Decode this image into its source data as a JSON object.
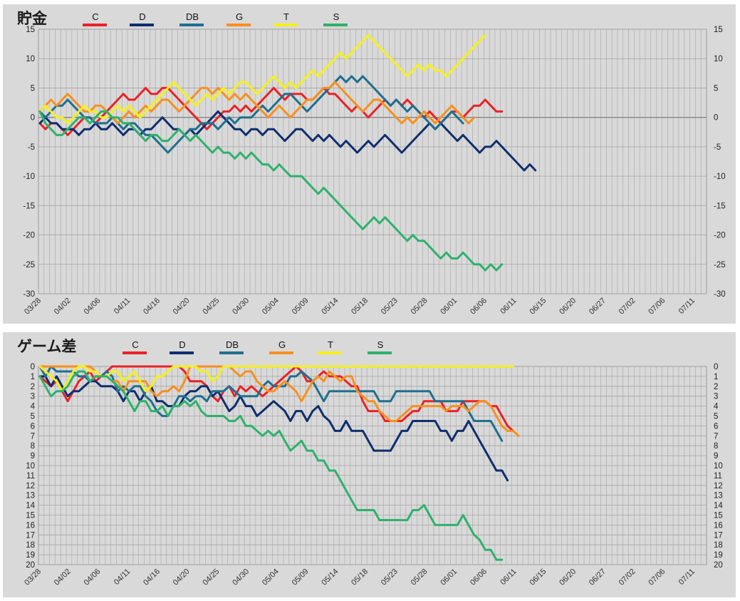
{
  "colors": {
    "C": "#ea2226",
    "D": "#0f2e6e",
    "DB": "#1f6f8e",
    "G": "#f7901e",
    "T": "#f5f01a",
    "S": "#2eb16c"
  },
  "chart_data": [
    {
      "type": "line",
      "title": "貯金",
      "ylim": [
        -30,
        15
      ],
      "yticks": [
        "15",
        "10",
        "5",
        "0",
        "-5",
        "-10",
        "-15",
        "-20",
        "-25",
        "-30"
      ],
      "yticks_right": [
        "15",
        "10",
        "5",
        "0",
        "-5",
        "-10",
        "-15",
        "-20",
        "-25",
        "-30"
      ],
      "xticks": [
        "03/28",
        "04/02",
        "04/06",
        "04/11",
        "04/16",
        "04/20",
        "04/25",
        "04/30",
        "05/04",
        "05/09",
        "05/14",
        "05/18",
        "05/23",
        "05/28",
        "06/01",
        "06/06",
        "06/11",
        "06/15",
        "06/20",
        "06/27",
        "07/02",
        "07/06",
        "07/11"
      ],
      "grid": true,
      "legend_position": "top-left",
      "series": [
        {
          "name": "C",
          "values": [
            -1,
            -2,
            -1,
            -1,
            -2,
            -3,
            -2,
            -1,
            0,
            0,
            -1,
            0,
            1,
            2,
            3,
            4,
            3,
            3,
            4,
            5,
            4,
            4,
            5,
            5,
            4,
            3,
            2,
            1,
            0,
            -1,
            -2,
            -1,
            0,
            1,
            1,
            2,
            1,
            2,
            1,
            2,
            3,
            4,
            5,
            4,
            3,
            4,
            4,
            4,
            3,
            3,
            4,
            5,
            4,
            4,
            3,
            2,
            1,
            2,
            1,
            0,
            1,
            2,
            3,
            2,
            3,
            2,
            3,
            2,
            1,
            0,
            1,
            0,
            -1,
            0,
            1,
            1,
            0,
            1,
            2,
            2,
            3,
            2,
            1,
            1
          ]
        },
        {
          "name": "D",
          "values": [
            -1,
            0,
            -1,
            -1,
            -2,
            -2,
            -2,
            -3,
            -2,
            -2,
            -1,
            -2,
            -2,
            -1,
            -2,
            -3,
            -2,
            -2,
            -3,
            -2,
            -2,
            -1,
            0,
            -1,
            -2,
            -2,
            -3,
            -2,
            -3,
            -2,
            -1,
            0,
            1,
            0,
            -1,
            -2,
            -2,
            -3,
            -2,
            -2,
            -3,
            -2,
            -2,
            -3,
            -4,
            -3,
            -2,
            -2,
            -3,
            -4,
            -3,
            -4,
            -3,
            -4,
            -5,
            -4,
            -5,
            -6,
            -5,
            -4,
            -5,
            -4,
            -3,
            -4,
            -5,
            -6,
            -5,
            -4,
            -3,
            -2,
            -1,
            -2,
            -1,
            -2,
            -3,
            -4,
            -3,
            -4,
            -5,
            -6,
            -5,
            -5,
            -4,
            -5,
            -6,
            -7,
            -8,
            -9,
            -8,
            -9
          ]
        },
        {
          "name": "DB",
          "values": [
            1,
            0,
            1,
            2,
            2,
            3,
            2,
            1,
            0,
            0,
            -1,
            -1,
            -1,
            0,
            -1,
            -2,
            -1,
            -1,
            -2,
            -3,
            -3,
            -4,
            -5,
            -6,
            -5,
            -4,
            -3,
            -2,
            -2,
            -1,
            -1,
            -1,
            -2,
            -1,
            0,
            -1,
            0,
            0,
            0,
            1,
            2,
            1,
            2,
            3,
            4,
            4,
            3,
            2,
            1,
            2,
            3,
            4,
            5,
            6,
            7,
            6,
            7,
            6,
            7,
            6,
            5,
            4,
            3,
            2,
            3,
            2,
            1,
            2,
            1,
            0,
            -1,
            -2,
            -1,
            0,
            1,
            0,
            -1
          ]
        },
        {
          "name": "G",
          "values": [
            1,
            2,
            3,
            2,
            3,
            4,
            3,
            2,
            1,
            1,
            2,
            2,
            1,
            0,
            -1,
            0,
            1,
            0,
            1,
            2,
            1,
            2,
            3,
            3,
            2,
            1,
            2,
            3,
            4,
            5,
            5,
            4,
            5,
            4,
            3,
            4,
            3,
            4,
            3,
            2,
            1,
            0,
            1,
            2,
            1,
            0,
            1,
            2,
            3,
            3,
            4,
            5,
            5,
            6,
            5,
            4,
            3,
            2,
            1,
            2,
            3,
            3,
            2,
            1,
            0,
            -1,
            0,
            -1,
            0,
            1,
            0,
            -1,
            0,
            1,
            2,
            1,
            0,
            -1,
            0
          ]
        },
        {
          "name": "T",
          "values": [
            1,
            2,
            1,
            0,
            0,
            -1,
            0,
            1,
            2,
            1,
            1,
            0,
            0,
            1,
            2,
            1,
            2,
            1,
            0,
            1,
            2,
            3,
            4,
            5,
            6,
            5,
            4,
            3,
            2,
            3,
            4,
            3,
            4,
            5,
            4,
            5,
            6,
            6,
            5,
            4,
            5,
            6,
            7,
            6,
            5,
            6,
            5,
            6,
            7,
            8,
            7,
            8,
            9,
            10,
            11,
            10,
            11,
            12,
            13,
            14,
            13,
            12,
            11,
            10,
            9,
            8,
            7,
            8,
            9,
            8,
            9,
            8,
            8,
            7,
            8,
            9,
            10,
            11,
            12,
            13,
            14
          ]
        },
        {
          "name": "S",
          "values": [
            1,
            -1,
            -2,
            -3,
            -3,
            -2,
            -1,
            0,
            0,
            -1,
            0,
            1,
            1,
            0,
            0,
            -1,
            -1,
            -2,
            -3,
            -4,
            -3,
            -3,
            -4,
            -4,
            -3,
            -2,
            -3,
            -4,
            -3,
            -4,
            -5,
            -6,
            -5,
            -6,
            -6,
            -7,
            -6,
            -7,
            -6,
            -7,
            -8,
            -8,
            -9,
            -8,
            -9,
            -10,
            -10,
            -10,
            -11,
            -12,
            -13,
            -12,
            -13,
            -14,
            -15,
            -16,
            -17,
            -18,
            -19,
            -18,
            -17,
            -18,
            -17,
            -18,
            -19,
            -20,
            -21,
            -20,
            -21,
            -21,
            -22,
            -23,
            -24,
            -23,
            -24,
            -24,
            -23,
            -24,
            -25,
            -25,
            -26,
            -25,
            -26,
            -25
          ]
        }
      ]
    },
    {
      "type": "line",
      "title": "ゲーム差",
      "ylim": [
        0,
        20
      ],
      "y_inverted": true,
      "yticks": [
        "0",
        "1",
        "2",
        "3",
        "4",
        "5",
        "6",
        "7",
        "8",
        "9",
        "10",
        "11",
        "12",
        "13",
        "14",
        "15",
        "16",
        "17",
        "18",
        "19",
        "20"
      ],
      "yticks_right": [
        "0",
        "1",
        "2",
        "3",
        "4",
        "5",
        "6",
        "7",
        "8",
        "9",
        "10",
        "11",
        "12",
        "13",
        "14",
        "15",
        "16",
        "17",
        "18",
        "19",
        "20"
      ],
      "xticks": [
        "03/28",
        "04/02",
        "04/06",
        "04/11",
        "04/16",
        "04/20",
        "04/25",
        "04/30",
        "05/04",
        "05/09",
        "05/14",
        "05/18",
        "05/23",
        "05/28",
        "06/01",
        "06/06",
        "06/11",
        "06/15",
        "06/20",
        "06/27",
        "07/02",
        "07/06",
        "07/11"
      ],
      "grid": true,
      "legend_position": "top-left",
      "series": [
        {
          "name": "C",
          "values": [
            1,
            1.5,
            2,
            1.5,
            2.5,
            3.5,
            2.5,
            1.5,
            1,
            0.5,
            1.5,
            1,
            0.5,
            0,
            0,
            0,
            0,
            0,
            0,
            0,
            0,
            0,
            0,
            0,
            0,
            0,
            0.5,
            1.5,
            1.5,
            1.5,
            2,
            3,
            3.5,
            2.5,
            2,
            3,
            2,
            2.5,
            2,
            2.5,
            3,
            2.5,
            2,
            1.5,
            1,
            0.5,
            0,
            0.5,
            1.5,
            1.5,
            1,
            0.5,
            1,
            1,
            1,
            1.5,
            2,
            2,
            3.5,
            4.5,
            4.5,
            4.5,
            5.5,
            5.5,
            5.5,
            5.5,
            5,
            4.5,
            4.5,
            3.5,
            3.5,
            3.5,
            3.5,
            4.5,
            4.5,
            4.5,
            3.5,
            3.5,
            3.5,
            3.5,
            3.5,
            4,
            4,
            5,
            6,
            6.5
          ]
        },
        {
          "name": "D",
          "values": [
            1,
            1,
            2,
            1,
            2,
            3,
            2.5,
            2.5,
            2,
            1.5,
            1.5,
            2,
            2,
            2,
            2.5,
            3.5,
            2.5,
            2.5,
            3.5,
            2.5,
            2,
            3.5,
            3.5,
            4,
            4,
            4,
            3,
            2.5,
            2.5,
            2,
            2,
            3,
            2.5,
            3.5,
            4.5,
            4,
            3,
            4,
            4,
            5,
            4.5,
            4,
            3.5,
            4,
            4.5,
            5.5,
            4.5,
            4.5,
            5.5,
            4.5,
            4,
            5,
            5.5,
            6.5,
            6.5,
            5.5,
            6.5,
            6.5,
            6.5,
            7.5,
            8.5,
            8.5,
            8.5,
            8.5,
            7.5,
            6.5,
            6.5,
            5.5,
            5.5,
            5.5,
            5.5,
            5.5,
            6.5,
            6.5,
            7.5,
            6.5,
            6.5,
            5.5,
            6.5,
            7.5,
            8.5,
            9.5,
            10.5,
            10.5,
            11.5
          ]
        },
        {
          "name": "DB",
          "values": [
            0,
            1,
            0,
            0.5,
            0.5,
            0.5,
            0.5,
            1,
            1,
            1.5,
            1,
            1,
            0.5,
            1,
            2.5,
            2,
            2.5,
            2,
            2,
            3,
            3.5,
            4.5,
            5,
            5,
            4,
            3,
            3,
            3.5,
            3,
            3,
            3.5,
            2.5,
            2.5,
            2.5,
            2,
            2.5,
            3,
            3,
            3,
            3,
            2,
            1.5,
            2,
            2,
            2,
            1,
            1,
            0.5,
            1,
            1.5,
            2.5,
            3.5,
            2.5,
            2.5,
            2.5,
            2.5,
            2.5,
            2.5,
            2.5,
            2.5,
            2.5,
            3.5,
            3.5,
            3.5,
            2.5,
            2.5,
            2.5,
            2.5,
            2.5,
            2.5,
            2.5,
            3.5,
            3.5,
            3.5,
            3.5,
            3.5,
            3.5,
            4.5,
            5.5,
            5.5,
            5.5,
            5.5,
            6.5,
            7.5
          ]
        },
        {
          "name": "G",
          "values": [
            0,
            0,
            0,
            0,
            0,
            0,
            0,
            0,
            0,
            0,
            0.5,
            1,
            1,
            1.5,
            1.5,
            2.5,
            1.5,
            1.5,
            1.5,
            1.5,
            2.5,
            3,
            2.5,
            2.5,
            2,
            2.5,
            1.5,
            0,
            0,
            0,
            0,
            0,
            0,
            0,
            0,
            0.5,
            1,
            0.5,
            0.5,
            1.5,
            2,
            2.5,
            2.5,
            2,
            1.5,
            2,
            2.5,
            3.5,
            2.5,
            1.5,
            1,
            1.5,
            0.5,
            1,
            1.5,
            1,
            1,
            2.5,
            3,
            3.5,
            3.5,
            4.5,
            5,
            5.5,
            5.5,
            5,
            4.5,
            4,
            4,
            4,
            4,
            4,
            4,
            4.5,
            4,
            4,
            4,
            4.5,
            4,
            3.5,
            3.5,
            4,
            5,
            6,
            6.5,
            6.5,
            7
          ]
        },
        {
          "name": "T",
          "values": [
            0,
            0.5,
            1,
            1.5,
            2.5,
            1.5,
            0.5,
            0,
            0,
            0.5,
            0.5,
            1,
            1,
            0.5,
            0.5,
            1.5,
            1,
            0.5,
            1.5,
            2.5,
            2,
            1,
            1,
            0.5,
            0,
            0,
            0,
            0,
            0,
            0.5,
            0.5,
            1.5,
            1,
            0,
            0,
            0,
            0,
            0,
            0,
            0,
            0,
            0,
            0,
            0,
            0,
            0,
            0,
            0,
            0,
            0,
            0,
            0,
            0,
            0,
            0,
            0,
            0,
            0,
            0,
            0,
            0,
            0,
            0,
            0,
            0,
            0,
            0,
            0,
            0,
            0,
            0,
            0,
            0,
            0,
            0,
            0,
            0,
            0,
            0,
            0,
            0,
            0,
            0,
            0,
            0,
            0
          ]
        },
        {
          "name": "S",
          "values": [
            1,
            2,
            3,
            2.5,
            2.5,
            2,
            1,
            0.5,
            0.5,
            1.5,
            1,
            1,
            1,
            1.5,
            2,
            2.5,
            3.5,
            4.5,
            3.5,
            3.5,
            4.5,
            4.5,
            4,
            5,
            4,
            4,
            3.5,
            4,
            3.5,
            4.5,
            5,
            5,
            5,
            5,
            5.5,
            5.5,
            5,
            6,
            6,
            6.5,
            7,
            6.5,
            7,
            6.5,
            7.5,
            8.5,
            8,
            7.5,
            8.5,
            8.5,
            9.5,
            9.5,
            10.5,
            10.5,
            11.5,
            12.5,
            13.5,
            14.5,
            14.5,
            14.5,
            14.5,
            15.5,
            15.5,
            15.5,
            15.5,
            15.5,
            15.5,
            14.5,
            14.5,
            14,
            15,
            16,
            16,
            16,
            16,
            16,
            15,
            16,
            17,
            17.5,
            18.5,
            18.5,
            19.5,
            19.5
          ]
        }
      ]
    }
  ]
}
